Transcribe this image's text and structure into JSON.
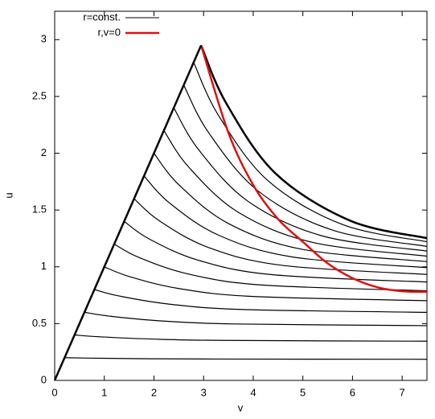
{
  "chart_data": {
    "type": "line",
    "x_label": "v",
    "y_label": "u",
    "xlim": [
      0,
      7.5
    ],
    "xticks": [
      0,
      1,
      2,
      3,
      4,
      5,
      6,
      7
    ],
    "ylim": [
      0,
      3.25
    ],
    "yticks": [
      0,
      0.5,
      1,
      1.5,
      2,
      2.5,
      3
    ],
    "grid": false,
    "legend": "top-left",
    "series": [
      {
        "name": "r=const.",
        "color": "#000000",
        "curves": [
          {
            "x": [
              0.2,
              0.7,
              1.7,
              3.2,
              7.5
            ],
            "values": [
              0.2,
              0.196,
              0.191,
              0.188,
              0.186
            ]
          },
          {
            "x": [
              0.4,
              0.9,
              1.9,
              3.4,
              7.5
            ],
            "values": [
              0.4,
              0.384,
              0.365,
              0.352,
              0.345
            ]
          },
          {
            "x": [
              0.6,
              1.1,
              2.1,
              3.6,
              7.5
            ],
            "values": [
              0.6,
              0.566,
              0.525,
              0.497,
              0.482
            ]
          },
          {
            "x": [
              0.8,
              1.3,
              2.3,
              3.8,
              7.5
            ],
            "values": [
              0.8,
              0.743,
              0.672,
              0.624,
              0.599
            ]
          },
          {
            "x": [
              1.0,
              1.5,
              2.5,
              4.0,
              7.5
            ],
            "values": [
              1.0,
              0.915,
              0.809,
              0.739,
              0.702
            ]
          },
          {
            "x": [
              1.2,
              1.7,
              2.7,
              4.2,
              7.5
            ],
            "values": [
              1.2,
              1.082,
              0.936,
              0.839,
              0.789
            ]
          },
          {
            "x": [
              1.4,
              1.9,
              2.9,
              4.4,
              7.5
            ],
            "values": [
              1.4,
              1.246,
              1.057,
              0.93,
              0.866
            ]
          },
          {
            "x": [
              1.6,
              2.1,
              3.1,
              4.6,
              7.5
            ],
            "values": [
              1.6,
              1.408,
              1.17,
              1.012,
              0.933
            ]
          },
          {
            "x": [
              1.8,
              2.3,
              3.3,
              4.8,
              7.5
            ],
            "values": [
              1.8,
              1.567,
              1.279,
              1.086,
              0.993
            ]
          },
          {
            "x": [
              2.0,
              2.5,
              3.5,
              5.0,
              7.5
            ],
            "values": [
              2.0,
              1.723,
              1.381,
              1.153,
              1.046
            ]
          },
          {
            "x": [
              2.2,
              2.7,
              3.7,
              5.2,
              7.5
            ],
            "values": [
              2.2,
              1.878,
              1.48,
              1.215,
              1.094
            ]
          },
          {
            "x": [
              2.4,
              2.9,
              3.9,
              5.4,
              7.5
            ],
            "values": [
              2.4,
              2.031,
              1.575,
              1.271,
              1.139
            ]
          },
          {
            "x": [
              2.6,
              3.1,
              4.1,
              5.6,
              7.5
            ],
            "values": [
              2.6,
              2.182,
              1.667,
              1.323,
              1.18
            ]
          },
          {
            "x": [
              2.8,
              3.3,
              4.3,
              5.8,
              7.5
            ],
            "values": [
              2.8,
              2.333,
              1.757,
              1.372,
              1.221
            ]
          },
          {
            "x": [
              2.95,
              3.45,
              4.45,
              5.95,
              7.5
            ],
            "values": [
              2.95,
              2.445,
              1.822,
              1.407,
              1.252
            ]
          }
        ]
      },
      {
        "name": "r,v=0",
        "color": "#dd1111",
        "x": [
          2.95,
          3.5,
          4,
          4.5,
          5,
          5.5,
          6,
          6.5,
          7,
          7.5
        ],
        "values": [
          2.95,
          2.18,
          1.72,
          1.42,
          1.22,
          1.03,
          0.9,
          0.82,
          0.785,
          0.78
        ]
      },
      {
        "color": "#000000",
        "x": [
          0,
          2.95
        ],
        "values": [
          0,
          2.95
        ]
      }
    ]
  }
}
